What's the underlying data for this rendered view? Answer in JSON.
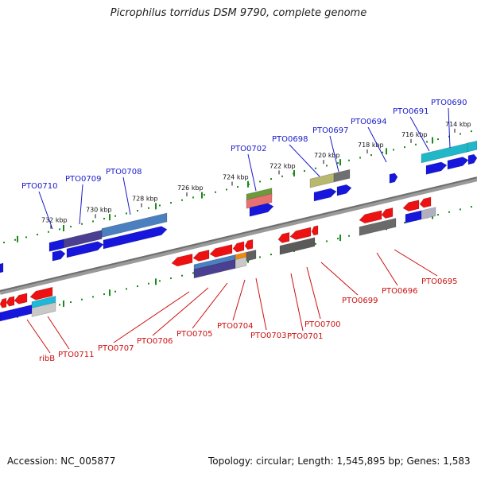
{
  "title": "Picrophilus torridus DSM 9790, complete genome",
  "footer": {
    "accession": "Accession: NC_005877",
    "summary": "Topology: circular; Length: 1,545,895 bp; Genes: 1,583"
  },
  "colors": {
    "forward_label": "#1a1acc",
    "reverse_label": "#cc1010",
    "backbone": "#7a7a7a",
    "scale_dots": "#1a8a1a"
  },
  "scale_labels": [
    "714 kbp",
    "716 kbp",
    "718 kbp",
    "720 kbp",
    "722 kbp",
    "724 kbp",
    "726 kbp",
    "728 kbp",
    "730 kbp",
    "732 kbp"
  ],
  "forward_genes": [
    "PTO0690",
    "PTO0691",
    "PTO0694",
    "PTO0697",
    "PTO0698",
    "PTO0702",
    "PTO0708",
    "PTO0709",
    "PTO0710"
  ],
  "reverse_genes": [
    "PTO0695",
    "PTO0696",
    "PTO0699",
    "PTO0700",
    "PTO0701",
    "PTO0703",
    "PTO0704",
    "PTO0705",
    "PTO0706",
    "PTO0707",
    "PTO0711",
    "ribB"
  ]
}
